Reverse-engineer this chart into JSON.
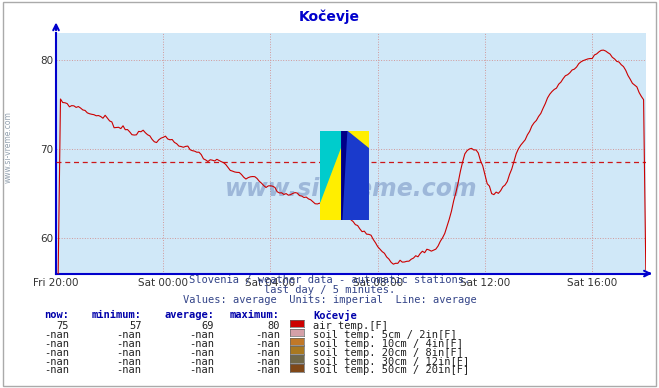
{
  "title": "Kočevje",
  "background_color": "#d0e8f8",
  "plot_bg_color": "#d0e8f8",
  "line_color": "#cc0000",
  "avg_line_color": "#cc0000",
  "average_value": 68.5,
  "ylim": [
    56,
    83
  ],
  "yticks": [
    60,
    70,
    80
  ],
  "xlabel_ticks": [
    "Fri 20:00",
    "Sat 00:00",
    "Sat 04:00",
    "Sat 08:00",
    "Sat 12:00",
    "Sat 16:00"
  ],
  "grid_color": "#d09090",
  "axis_color": "#0000cc",
  "subtitle1": "Slovenia / weather data - automatic stations.",
  "subtitle2": "last day / 5 minutes.",
  "subtitle3": "Values: average  Units: imperial  Line: average",
  "watermark": "www.si-vreme.com",
  "legend_rows": [
    {
      "now": "75",
      "min": "57",
      "avg": "69",
      "max": "80",
      "color": "#cc0000",
      "label": "air temp.[F]"
    },
    {
      "now": "-nan",
      "min": "-nan",
      "avg": "-nan",
      "max": "-nan",
      "color": "#d4a0a8",
      "label": "soil temp. 5cm / 2in[F]"
    },
    {
      "now": "-nan",
      "min": "-nan",
      "avg": "-nan",
      "max": "-nan",
      "color": "#c07828",
      "label": "soil temp. 10cm / 4in[F]"
    },
    {
      "now": "-nan",
      "min": "-nan",
      "avg": "-nan",
      "max": "-nan",
      "color": "#a87820",
      "label": "soil temp. 20cm / 8in[F]"
    },
    {
      "now": "-nan",
      "min": "-nan",
      "avg": "-nan",
      "max": "-nan",
      "color": "#706848",
      "label": "soil temp. 30cm / 12in[F]"
    },
    {
      "now": "-nan",
      "min": "-nan",
      "avg": "-nan",
      "max": "-nan",
      "color": "#804818",
      "label": "soil temp. 50cm / 20in[F]"
    }
  ],
  "n_points": 265
}
